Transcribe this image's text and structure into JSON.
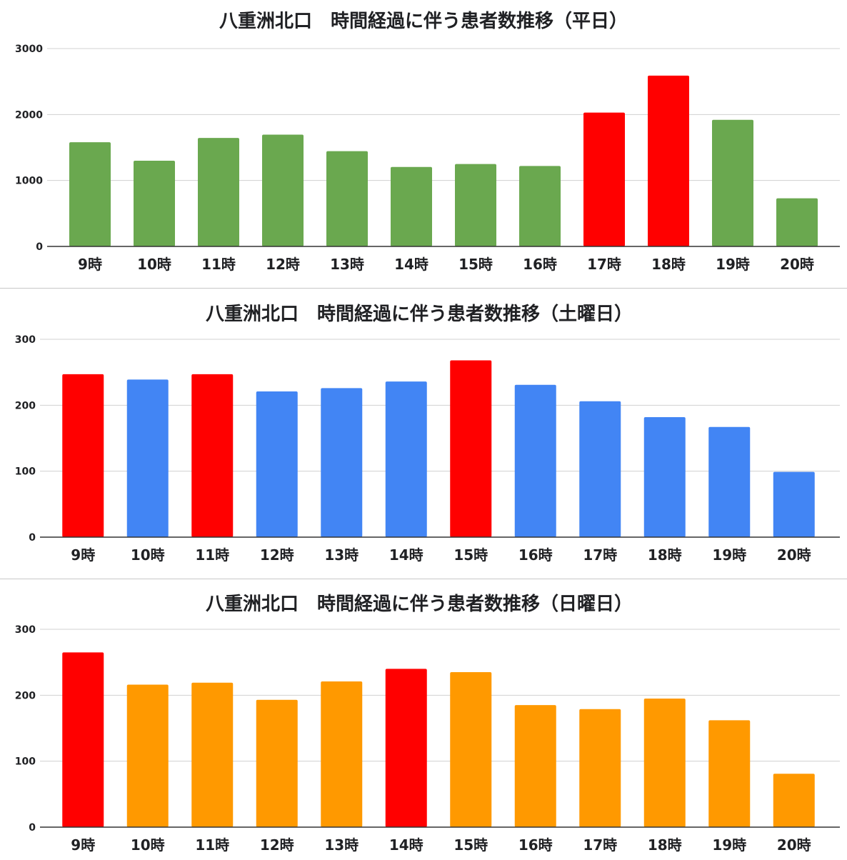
{
  "chart_data": [
    {
      "type": "bar",
      "title": "八重洲北口　時間経過に伴う患者数推移（平日）",
      "categories": [
        "9時",
        "10時",
        "11時",
        "12時",
        "13時",
        "14時",
        "15時",
        "16時",
        "17時",
        "18時",
        "19時",
        "20時"
      ],
      "values": [
        1580,
        1300,
        1645,
        1695,
        1445,
        1205,
        1250,
        1220,
        2030,
        2590,
        1920,
        730
      ],
      "ylim": [
        0,
        3000
      ],
      "yticks": [
        "0",
        "1000",
        "2000",
        "3000"
      ],
      "xlabel": "",
      "ylabel": "",
      "grid": true,
      "colors": [
        "#6aa84f",
        "#6aa84f",
        "#6aa84f",
        "#6aa84f",
        "#6aa84f",
        "#6aa84f",
        "#6aa84f",
        "#6aa84f",
        "#ff0000",
        "#ff0000",
        "#6aa84f",
        "#6aa84f"
      ]
    },
    {
      "type": "bar",
      "title": "八重洲北口　時間経過に伴う患者数推移（土曜日）",
      "categories": [
        "9時",
        "10時",
        "11時",
        "12時",
        "13時",
        "14時",
        "15時",
        "16時",
        "17時",
        "18時",
        "19時",
        "20時"
      ],
      "values": [
        247,
        239,
        247,
        221,
        226,
        236,
        268,
        231,
        206,
        182,
        167,
        99
      ],
      "ylim": [
        0,
        300
      ],
      "yticks": [
        "0",
        "100",
        "200",
        "300"
      ],
      "xlabel": "",
      "ylabel": "",
      "grid": true,
      "colors": [
        "#ff0000",
        "#4285f4",
        "#ff0000",
        "#4285f4",
        "#4285f4",
        "#4285f4",
        "#ff0000",
        "#4285f4",
        "#4285f4",
        "#4285f4",
        "#4285f4",
        "#4285f4"
      ]
    },
    {
      "type": "bar",
      "title": "八重洲北口　時間経過に伴う患者数推移（日曜日）",
      "categories": [
        "9時",
        "10時",
        "11時",
        "12時",
        "13時",
        "14時",
        "15時",
        "16時",
        "17時",
        "18時",
        "19時",
        "20時"
      ],
      "values": [
        265,
        216,
        219,
        193,
        221,
        240,
        235,
        185,
        179,
        195,
        162,
        81
      ],
      "ylim": [
        0,
        300
      ],
      "yticks": [
        "0",
        "100",
        "200",
        "300"
      ],
      "xlabel": "",
      "ylabel": "",
      "grid": true,
      "colors": [
        "#ff0000",
        "#ff9900",
        "#ff9900",
        "#ff9900",
        "#ff9900",
        "#ff0000",
        "#ff9900",
        "#ff9900",
        "#ff9900",
        "#ff9900",
        "#ff9900",
        "#ff9900"
      ]
    }
  ]
}
